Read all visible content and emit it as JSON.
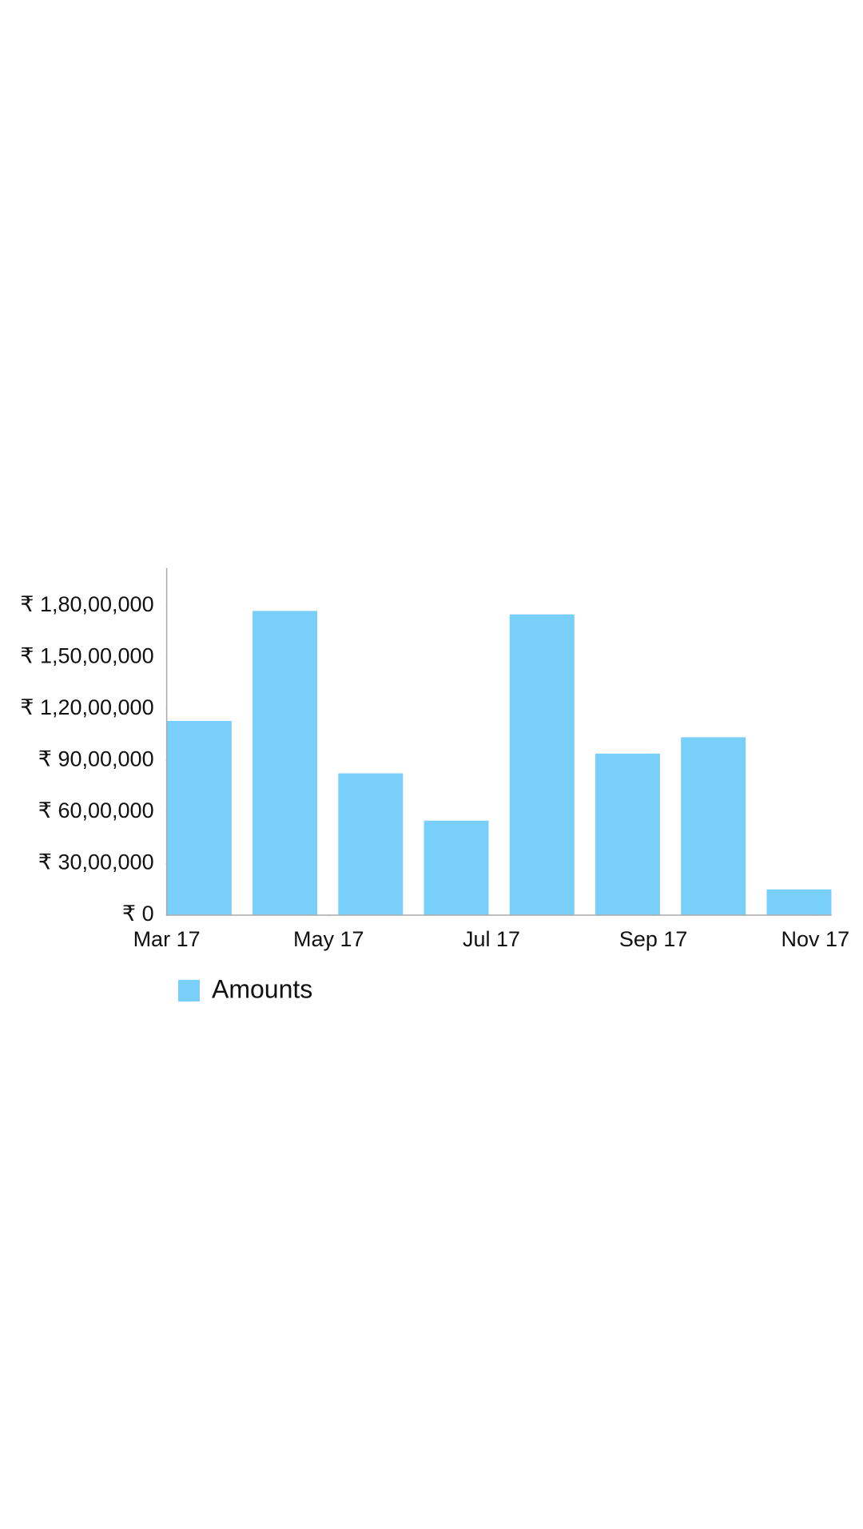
{
  "chart_data": {
    "type": "bar",
    "x": [
      0,
      1,
      2,
      3,
      4,
      5,
      6,
      7
    ],
    "series": [
      {
        "name": "Amounts",
        "color": "#78cff9",
        "values": [
          11300000,
          17700000,
          8250000,
          5500000,
          17500000,
          9400000,
          10350000,
          1500000
        ]
      }
    ],
    "xlim": [
      -0.38,
      7.38
    ],
    "xticks": [
      {
        "value": -0.38,
        "label": "Mar 17"
      },
      {
        "value": 1.51,
        "label": "May 17"
      },
      {
        "value": 3.41,
        "label": "Jul 17"
      },
      {
        "value": 5.3,
        "label": "Sep 17"
      },
      {
        "value": 7.19,
        "label": "Nov 17"
      }
    ],
    "ylim": [
      0,
      20200000
    ],
    "yticks": [
      {
        "value": 0,
        "label": "₹ 0"
      },
      {
        "value": 3000000,
        "label": "₹ 30,00,000"
      },
      {
        "value": 6000000,
        "label": "₹ 60,00,000"
      },
      {
        "value": 9000000,
        "label": "₹ 90,00,000"
      },
      {
        "value": 12000000,
        "label": "₹ 1,20,00,000"
      },
      {
        "value": 15000000,
        "label": "₹ 1,50,00,000"
      },
      {
        "value": 18000000,
        "label": "₹ 1,80,00,000"
      }
    ],
    "grid": false,
    "legend": "bottom-left"
  }
}
